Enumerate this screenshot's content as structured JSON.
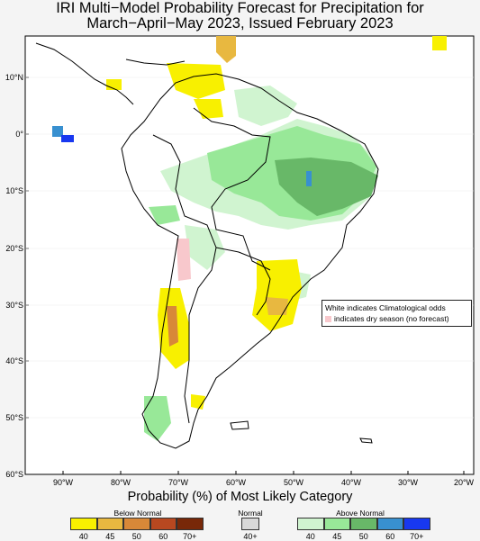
{
  "title_line1": "IRI Multi−Model Probability Forecast for Precipitation for",
  "title_line2": "March−April−May 2023, Issued February 2023",
  "lat_labels": [
    "10°N",
    "0°",
    "10°S",
    "20°S",
    "30°S",
    "40°S",
    "50°S",
    "60°S"
  ],
  "lon_labels": [
    "90°W",
    "80°W",
    "70°W",
    "60°W",
    "50°W",
    "40°W",
    "30°W",
    "20°W"
  ],
  "note_line1": "White indicates Climatological odds",
  "note_line2": "indicates dry season (no forecast)",
  "legend": {
    "title": "Probability (%) of Most Likely Category",
    "below_title": "Below Normal",
    "normal_title": "Normal",
    "above_title": "Above Normal",
    "below_ticks": [
      "40",
      "45",
      "50",
      "60",
      "70+"
    ],
    "normal_ticks": [
      "40+"
    ],
    "above_ticks": [
      "40",
      "45",
      "50",
      "60",
      "70+"
    ]
  },
  "colors": {
    "below": [
      "#f8f000",
      "#e8b840",
      "#d88838",
      "#b84820",
      "#782808"
    ],
    "normal": "#d8d8d8",
    "above": [
      "#d0f4d0",
      "#98e898",
      "#68b868",
      "#3890d0",
      "#1838f0"
    ],
    "dry": "#f8c8cc",
    "land": "#ffffff",
    "border": "#000000"
  }
}
